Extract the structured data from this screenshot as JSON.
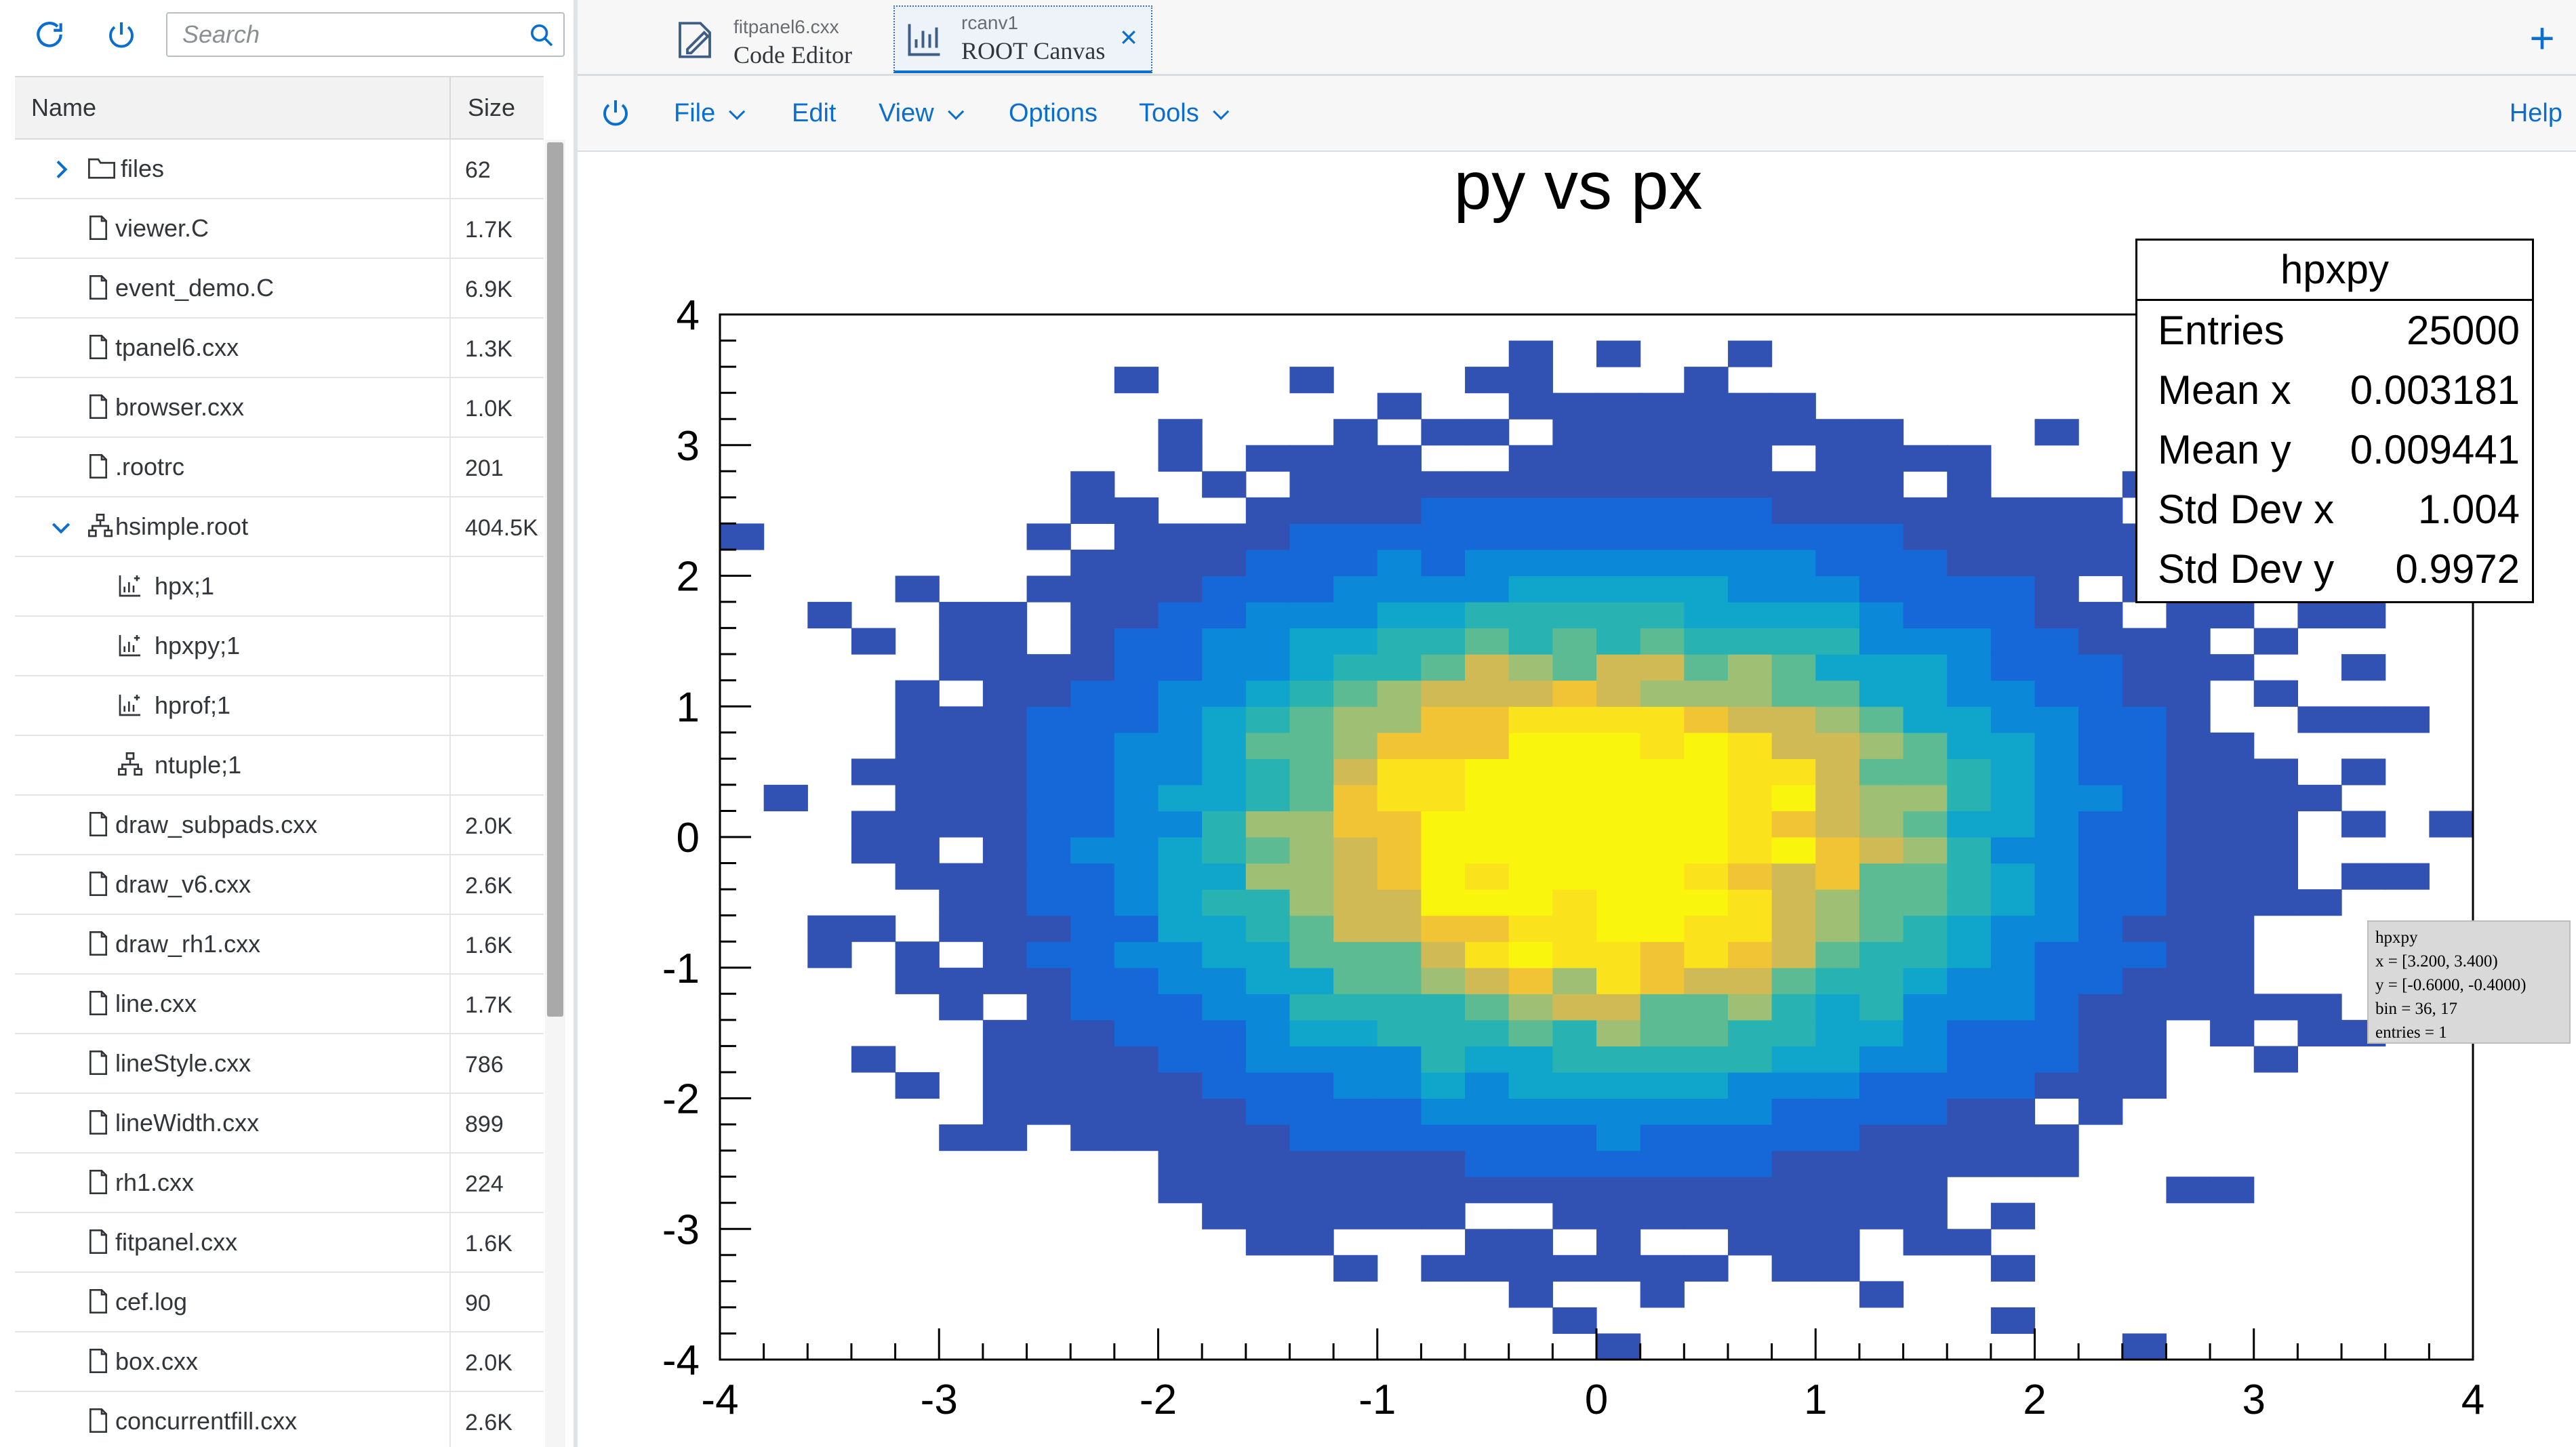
{
  "left_toolbar": {
    "search_placeholder": "Search"
  },
  "tree": {
    "columns": {
      "name": "Name",
      "size": "Size"
    },
    "rows": [
      {
        "name": "files",
        "size": "62",
        "icon": "folder-icon",
        "expander": "collapsed",
        "indent": 0
      },
      {
        "name": "viewer.C",
        "size": "1.7K",
        "icon": "file-icon",
        "indent": 0
      },
      {
        "name": "event_demo.C",
        "size": "6.9K",
        "icon": "file-icon",
        "indent": 0
      },
      {
        "name": "tpanel6.cxx",
        "size": "1.3K",
        "icon": "file-icon",
        "indent": 0
      },
      {
        "name": "browser.cxx",
        "size": "1.0K",
        "icon": "file-icon",
        "indent": 0
      },
      {
        "name": ".rootrc",
        "size": "201",
        "icon": "file-icon",
        "indent": 0
      },
      {
        "name": "hsimple.root",
        "size": "404.5K",
        "icon": "tree-icon",
        "expander": "expanded",
        "indent": 0
      },
      {
        "name": "hpx;1",
        "size": "",
        "icon": "histogram-icon",
        "indent": 1
      },
      {
        "name": "hpxpy;1",
        "size": "",
        "icon": "histogram-icon",
        "indent": 1
      },
      {
        "name": "hprof;1",
        "size": "",
        "icon": "histogram-icon",
        "indent": 1
      },
      {
        "name": "ntuple;1",
        "size": "",
        "icon": "tree-icon",
        "indent": 1
      },
      {
        "name": "draw_subpads.cxx",
        "size": "2.0K",
        "icon": "file-icon",
        "indent": 0
      },
      {
        "name": "draw_v6.cxx",
        "size": "2.6K",
        "icon": "file-icon",
        "indent": 0
      },
      {
        "name": "draw_rh1.cxx",
        "size": "1.6K",
        "icon": "file-icon",
        "indent": 0
      },
      {
        "name": "line.cxx",
        "size": "1.7K",
        "icon": "file-icon",
        "indent": 0
      },
      {
        "name": "lineStyle.cxx",
        "size": "786",
        "icon": "file-icon",
        "indent": 0
      },
      {
        "name": "lineWidth.cxx",
        "size": "899",
        "icon": "file-icon",
        "indent": 0
      },
      {
        "name": "rh1.cxx",
        "size": "224",
        "icon": "file-icon",
        "indent": 0
      },
      {
        "name": "fitpanel.cxx",
        "size": "1.6K",
        "icon": "file-icon",
        "indent": 0
      },
      {
        "name": "cef.log",
        "size": "90",
        "icon": "file-icon",
        "indent": 0
      },
      {
        "name": "box.cxx",
        "size": "2.0K",
        "icon": "file-icon",
        "indent": 0
      },
      {
        "name": "concurrentfill.cxx",
        "size": "2.6K",
        "icon": "file-icon",
        "indent": 0
      }
    ]
  },
  "tabs": [
    {
      "small": "fitpanel6.cxx",
      "label": "Code Editor",
      "icon": "code-editor-icon",
      "active": false
    },
    {
      "small": "rcanv1",
      "label": "ROOT Canvas",
      "icon": "canvas-chart-icon",
      "active": true
    }
  ],
  "menu": [
    {
      "label": "File",
      "dropdown": true
    },
    {
      "label": "Edit",
      "dropdown": false
    },
    {
      "label": "View",
      "dropdown": true
    },
    {
      "label": "Options",
      "dropdown": false
    },
    {
      "label": "Tools",
      "dropdown": true
    },
    {
      "label": "Help",
      "dropdown": false
    }
  ],
  "stats": {
    "title": "hpxpy",
    "rows": [
      {
        "key": "Entries",
        "value": "25000"
      },
      {
        "key": "Mean x",
        "value": "0.003181"
      },
      {
        "key": "Mean y",
        "value": "0.009441"
      },
      {
        "key": "Std Dev x",
        "value": "1.004"
      },
      {
        "key": "Std Dev y",
        "value": "0.9972"
      }
    ]
  },
  "tooltip": {
    "lines": [
      "hpxpy",
      "x = [3.200, 3.400)",
      "y = [-0.6000, -0.4000)",
      "bin = 36, 17",
      "entries = 1"
    ]
  },
  "colors": {
    "accent": "#0a6ed1",
    "palette": [
      "#3152b2",
      "#1668d8",
      "#0b88d8",
      "#10a6cc",
      "#28b3b2",
      "#5dbb93",
      "#9ebf74",
      "#d0ba55",
      "#f1c435",
      "#fae21c",
      "#f9f50c"
    ]
  },
  "chart_data": {
    "type": "heatmap",
    "title": "py vs px",
    "xlabel": "",
    "ylabel": "",
    "xlim": [
      -4,
      4
    ],
    "ylim": [
      -4,
      4
    ],
    "x_ticks": [
      "-4",
      "-3",
      "-2",
      "-1",
      "0",
      "1",
      "2",
      "3",
      "4"
    ],
    "y_ticks": [
      "4",
      "3",
      "2",
      "1",
      "0",
      "-1",
      "-2",
      "-3",
      "-4"
    ],
    "bins": {
      "nx": 40,
      "ny": 40,
      "dx": 0.2,
      "dy": 0.2
    },
    "distribution": {
      "mean_x": 0.003181,
      "mean_y": 0.009441,
      "sd_x": 1.004,
      "sd_y": 0.9972,
      "entries": 25000
    },
    "grid": false
  }
}
